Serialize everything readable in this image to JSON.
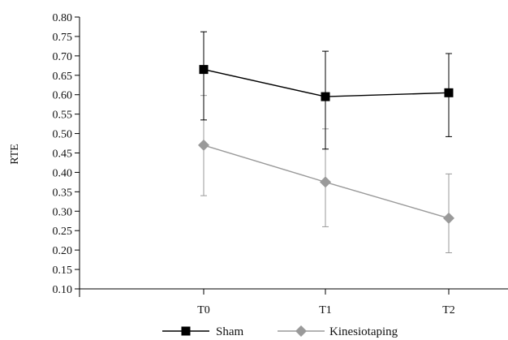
{
  "chart_data": {
    "type": "line",
    "title": "",
    "xlabel": "",
    "ylabel": "RTE",
    "categories": [
      "T0",
      "T1",
      "T2"
    ],
    "ylim": [
      0.1,
      0.8
    ],
    "yticks": [
      "0.10",
      "0.15",
      "0.20",
      "0.25",
      "0.30",
      "0.35",
      "0.40",
      "0.45",
      "0.50",
      "0.55",
      "0.60",
      "0.65",
      "0.70",
      "0.75",
      "0.80"
    ],
    "grid": false,
    "legend_position": "bottom",
    "series": [
      {
        "name": "Sham",
        "values": [
          0.665,
          0.595,
          0.605
        ],
        "error_low": [
          0.535,
          0.46,
          0.492
        ],
        "error_high": [
          0.762,
          0.712,
          0.706
        ],
        "marker": "square",
        "color": "#000000"
      },
      {
        "name": "Kinesiotaping",
        "values": [
          0.47,
          0.375,
          0.282
        ],
        "error_low": [
          0.34,
          0.26,
          0.193
        ],
        "error_high": [
          0.598,
          0.512,
          0.396
        ],
        "marker": "diamond",
        "color": "#9a9a9a"
      }
    ]
  }
}
